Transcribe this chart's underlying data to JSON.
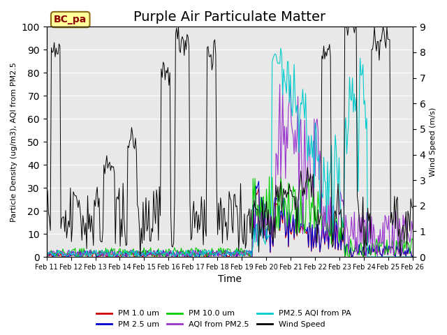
{
  "title": "Purple Air Particulate Matter",
  "xlabel": "Time",
  "ylabel_left": "Particle Density (ug/m3), AQI from PM2.5",
  "ylabel_right": "Wind Speed (m/s)",
  "ylim_left": [
    0,
    100
  ],
  "ylim_right": [
    0.0,
    9.0
  ],
  "label_box": "BC_pa",
  "x_ticks": [
    "Feb 11",
    "Feb 12",
    "Feb 13",
    "Feb 14",
    "Feb 15",
    "Feb 16",
    "Feb 17",
    "Feb 18",
    "Feb 19",
    "Feb 20",
    "Feb 21",
    "Feb 22",
    "Feb 23",
    "Feb 24",
    "Feb 25",
    "Feb 26"
  ],
  "colors": {
    "PM1": "#cc0000",
    "PM25": "#0000cc",
    "PM10": "#00cc00",
    "AQI_PM25": "#9933cc",
    "AQI_PA": "#00cccc",
    "wind": "#000000"
  },
  "legend_labels": [
    "PM 1.0 um",
    "PM 2.5 um",
    "PM 10.0 um",
    "AQI from PM2.5",
    "PM2.5 AQI from PA",
    "Wind Speed"
  ],
  "background_color": "#e8e8e8",
  "title_fontsize": 14,
  "label_fontsize": 10
}
